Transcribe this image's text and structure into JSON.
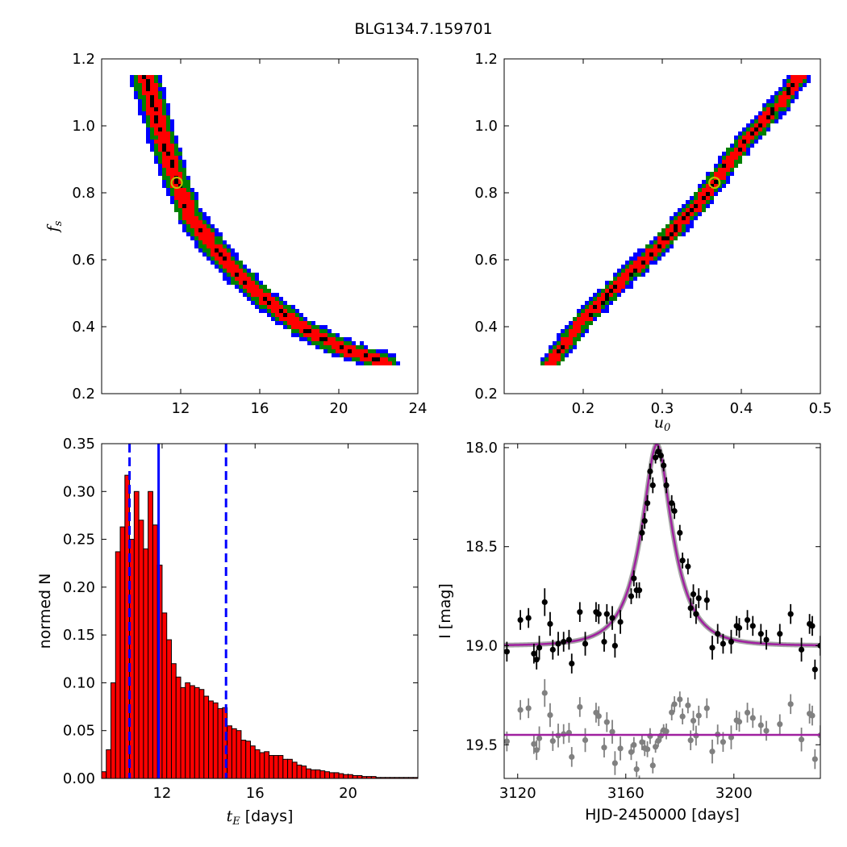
{
  "title": "BLG134.7.159701",
  "colors": {
    "blue": "#0000ff",
    "green": "#008000",
    "red": "#ff0000",
    "black": "#000000",
    "model": "#a020a0",
    "gray": "#808080",
    "marker": "#bfbf00"
  },
  "chart_data": [
    {
      "type": "heatmap",
      "panel": "top-left",
      "xlabel": "",
      "ylabel_math": "f",
      "ylabel_sub": "s",
      "xlim": [
        8,
        24
      ],
      "ylim": [
        0.2,
        1.2
      ],
      "xticks": [
        "12",
        "16",
        "20",
        "24"
      ],
      "yticks": [
        "0.2",
        "0.4",
        "0.6",
        "0.8",
        "1.0",
        "1.2"
      ],
      "levels": [
        "black",
        "red",
        "green",
        "blue"
      ],
      "ridge": [
        [
          10.2,
          1.15
        ],
        [
          11.0,
          0.98
        ],
        [
          11.8,
          0.83
        ],
        [
          12.5,
          0.73
        ],
        [
          13.5,
          0.65
        ],
        [
          15.0,
          0.55
        ],
        [
          16.5,
          0.47
        ],
        [
          18.3,
          0.39
        ],
        [
          20.0,
          0.34
        ],
        [
          22.5,
          0.29
        ]
      ],
      "best_fit": {
        "x": 11.8,
        "y": 0.83
      }
    },
    {
      "type": "heatmap",
      "panel": "top-right",
      "xlabel_math": "u",
      "xlabel_sub": "0",
      "xlim": [
        0.1,
        0.5
      ],
      "ylim": [
        0.2,
        1.2
      ],
      "xticks": [
        "0.2",
        "0.3",
        "0.4",
        "0.5"
      ],
      "yticks": [
        "0.2",
        "0.4",
        "0.6",
        "0.8",
        "1.0",
        "1.2"
      ],
      "levels": [
        "black",
        "red",
        "green",
        "blue"
      ],
      "ridge": [
        [
          0.158,
          0.29
        ],
        [
          0.2,
          0.42
        ],
        [
          0.25,
          0.54
        ],
        [
          0.3,
          0.65
        ],
        [
          0.35,
          0.78
        ],
        [
          0.4,
          0.94
        ],
        [
          0.45,
          1.07
        ],
        [
          0.475,
          1.15
        ]
      ],
      "best_fit": {
        "x": 0.366,
        "y": 0.83
      }
    },
    {
      "type": "bar",
      "panel": "bottom-left",
      "xlabel_math": "t",
      "xlabel_sub": "E",
      "xlabel_unit": "[days]",
      "ylabel": "normed N",
      "xlim": [
        9.4,
        23.0
      ],
      "ylim": [
        0.0,
        0.35
      ],
      "xticks": [
        "12",
        "16",
        "20"
      ],
      "yticks": [
        "0.00",
        "0.05",
        "0.10",
        "0.15",
        "0.20",
        "0.25",
        "0.30",
        "0.35"
      ],
      "bin_start": 9.4,
      "bin_width": 0.2,
      "values": [
        0.007,
        0.03,
        0.1,
        0.237,
        0.263,
        0.317,
        0.25,
        0.3,
        0.27,
        0.24,
        0.3,
        0.265,
        0.223,
        0.173,
        0.145,
        0.12,
        0.106,
        0.095,
        0.1,
        0.097,
        0.095,
        0.093,
        0.086,
        0.081,
        0.079,
        0.073,
        0.074,
        0.055,
        0.052,
        0.05,
        0.04,
        0.039,
        0.034,
        0.03,
        0.027,
        0.028,
        0.024,
        0.024,
        0.024,
        0.02,
        0.02,
        0.017,
        0.014,
        0.013,
        0.01,
        0.009,
        0.009,
        0.008,
        0.007,
        0.006,
        0.006,
        0.005,
        0.004,
        0.004,
        0.003,
        0.003,
        0.002,
        0.002,
        0.002,
        0.001,
        0.001,
        0.001,
        0.001,
        0.001,
        0.001,
        0.001,
        0.001,
        0.001
      ],
      "median": 11.85,
      "interval": [
        10.6,
        14.75
      ]
    },
    {
      "type": "scatter",
      "panel": "bottom-right",
      "xlabel": "HJD-2450000 [days]",
      "ylabel": "I [mag]",
      "xlim": [
        3115,
        3232
      ],
      "ylim": [
        19.67,
        17.98
      ],
      "y_inverted": true,
      "xticks": [
        "3120",
        "3160",
        "3200"
      ],
      "yticks": [
        "18.0",
        "18.5",
        "19.0",
        "19.5"
      ],
      "model": {
        "t0": 3171.5,
        "tE": 11.8,
        "u0": 0.366,
        "fs": 0.83,
        "baseline": 19.0
      },
      "residual_baseline": 19.45,
      "data": [
        [
          3116,
          19.03,
          0.05
        ],
        [
          3121,
          18.87,
          0.05
        ],
        [
          3124,
          18.86,
          0.05
        ],
        [
          3126,
          19.04,
          0.05
        ],
        [
          3127,
          19.07,
          0.05
        ],
        [
          3128,
          19.01,
          0.06
        ],
        [
          3130,
          18.78,
          0.07
        ],
        [
          3132,
          18.89,
          0.06
        ],
        [
          3133,
          19.02,
          0.05
        ],
        [
          3135,
          18.99,
          0.06
        ],
        [
          3137,
          18.98,
          0.05
        ],
        [
          3139,
          18.97,
          0.05
        ],
        [
          3140,
          19.09,
          0.05
        ],
        [
          3143,
          18.83,
          0.05
        ],
        [
          3145,
          18.99,
          0.06
        ],
        [
          3149,
          18.83,
          0.05
        ],
        [
          3150,
          18.84,
          0.05
        ],
        [
          3152,
          18.98,
          0.05
        ],
        [
          3153,
          18.84,
          0.05
        ],
        [
          3155,
          18.86,
          0.06
        ],
        [
          3156,
          19.0,
          0.06
        ],
        [
          3158,
          18.88,
          0.06
        ],
        [
          3162,
          18.75,
          0.04
        ],
        [
          3163,
          18.66,
          0.04
        ],
        [
          3164,
          18.72,
          0.04
        ],
        [
          3165,
          18.72,
          0.04
        ],
        [
          3166,
          18.43,
          0.04
        ],
        [
          3167,
          18.37,
          0.04
        ],
        [
          3168,
          18.28,
          0.04
        ],
        [
          3169,
          18.12,
          0.04
        ],
        [
          3170,
          18.19,
          0.04
        ],
        [
          3171,
          18.05,
          0.03
        ],
        [
          3172,
          18.02,
          0.03
        ],
        [
          3173,
          18.04,
          0.03
        ],
        [
          3174,
          18.09,
          0.03
        ],
        [
          3175,
          18.19,
          0.04
        ],
        [
          3177,
          18.28,
          0.04
        ],
        [
          3178,
          18.32,
          0.04
        ],
        [
          3180,
          18.43,
          0.04
        ],
        [
          3181,
          18.57,
          0.04
        ],
        [
          3183,
          18.6,
          0.04
        ],
        [
          3184,
          18.81,
          0.05
        ],
        [
          3185,
          18.74,
          0.05
        ],
        [
          3186,
          18.84,
          0.05
        ],
        [
          3187,
          18.76,
          0.05
        ],
        [
          3190,
          18.77,
          0.05
        ],
        [
          3192,
          19.01,
          0.06
        ],
        [
          3194,
          18.94,
          0.05
        ],
        [
          3196,
          18.99,
          0.05
        ],
        [
          3199,
          18.98,
          0.06
        ],
        [
          3201,
          18.9,
          0.05
        ],
        [
          3202,
          18.91,
          0.05
        ],
        [
          3205,
          18.87,
          0.05
        ],
        [
          3207,
          18.9,
          0.05
        ],
        [
          3210,
          18.94,
          0.05
        ],
        [
          3212,
          18.97,
          0.05
        ],
        [
          3217,
          18.94,
          0.05
        ],
        [
          3221,
          18.84,
          0.05
        ],
        [
          3225,
          19.02,
          0.06
        ],
        [
          3228,
          18.89,
          0.05
        ],
        [
          3229,
          18.9,
          0.05
        ],
        [
          3230,
          19.12,
          0.05
        ],
        [
          3232,
          19.0,
          0.05
        ]
      ]
    }
  ]
}
